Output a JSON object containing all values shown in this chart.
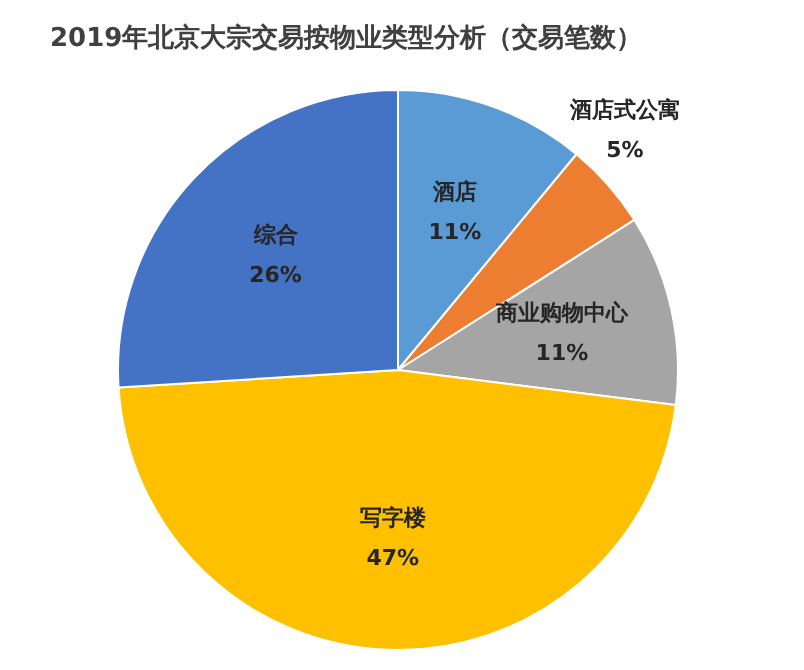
{
  "chart_data": {
    "type": "pie",
    "title": "2019年北京大宗交易按物业类型分析（交易笔数）",
    "categories": [
      "酒店",
      "酒店式公寓",
      "商业购物中心",
      "写字楼",
      "综合"
    ],
    "values": [
      11,
      5,
      11,
      47,
      26
    ],
    "colors": [
      "#5b9bd5",
      "#ed7d31",
      "#a5a5a5",
      "#ffc000",
      "#4472c4"
    ],
    "value_labels": [
      "11%",
      "5%",
      "11%",
      "47%",
      "26%"
    ],
    "legend": false
  }
}
